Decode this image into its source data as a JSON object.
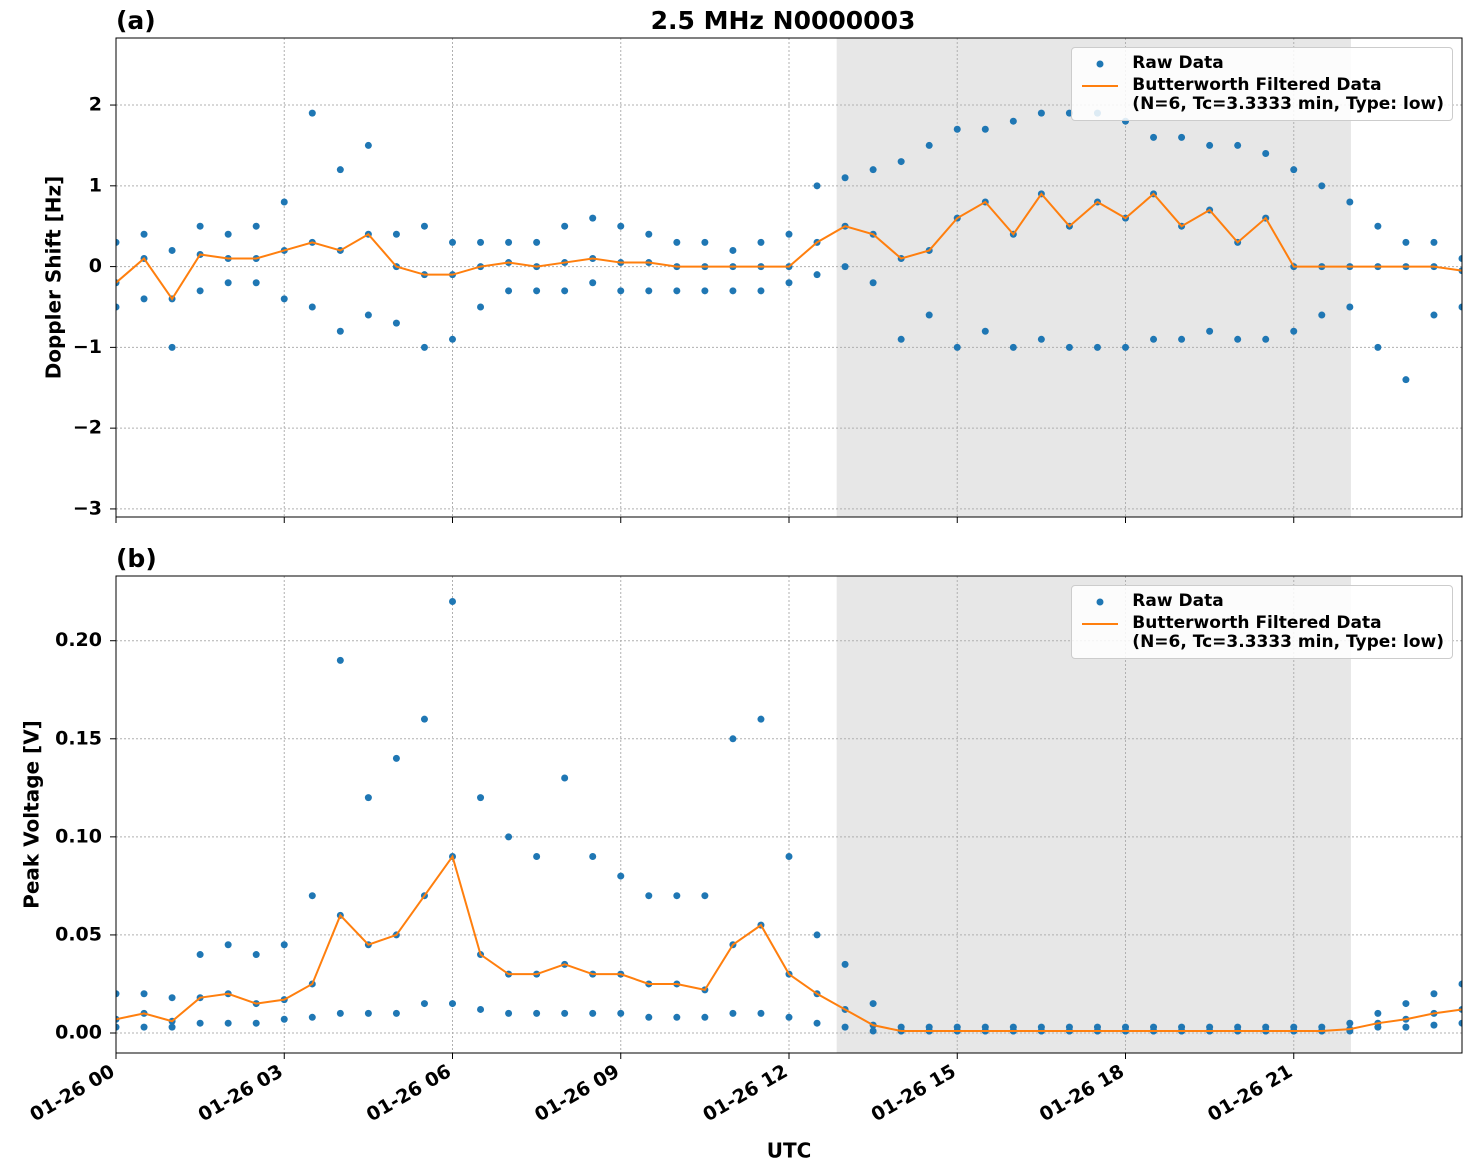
{
  "chart_data": [
    {
      "type": "scatter-line",
      "title": "2.5 MHz N0000003",
      "panel_label": "(a)",
      "ylabel": "Doppler Shift [Hz]",
      "x": [
        0,
        0.5,
        1,
        1.5,
        2,
        2.5,
        3,
        3.5,
        4,
        4.5,
        5,
        5.5,
        6,
        6.5,
        7,
        7.5,
        8,
        8.5,
        9,
        9.5,
        10,
        10.5,
        11,
        11.5,
        12,
        12.5,
        13,
        13.5,
        14,
        14.5,
        15,
        15.5,
        16,
        16.5,
        17,
        17.5,
        18,
        18.5,
        19,
        19.5,
        20,
        20.5,
        21,
        21.5,
        22,
        22.5,
        23,
        23.5,
        24
      ],
      "series": [
        {
          "name": "Raw Data",
          "color": "#1f77b4",
          "values": [
            [
              -0.5,
              -0.2,
              0.3
            ],
            [
              -0.4,
              0.1,
              0.4
            ],
            [
              -1.0,
              -0.4,
              0.2
            ],
            [
              -0.3,
              0.15,
              0.5
            ],
            [
              -0.2,
              0.1,
              0.4
            ],
            [
              -0.2,
              0.1,
              0.5
            ],
            [
              -0.4,
              0.2,
              0.8
            ],
            [
              -0.5,
              0.3,
              1.9
            ],
            [
              -0.8,
              0.2,
              1.2
            ],
            [
              -0.6,
              0.4,
              1.5
            ],
            [
              -0.7,
              0,
              0.4
            ],
            [
              -1.0,
              -0.1,
              0.5
            ],
            [
              -0.9,
              -0.1,
              0.3
            ],
            [
              -0.5,
              0,
              0.3
            ],
            [
              -0.3,
              0.05,
              0.3
            ],
            [
              -0.3,
              0,
              0.3
            ],
            [
              -0.3,
              0.05,
              0.5
            ],
            [
              -0.2,
              0.1,
              0.6
            ],
            [
              -0.3,
              0.05,
              0.5
            ],
            [
              -0.3,
              0.05,
              0.4
            ],
            [
              -0.3,
              0,
              0.3
            ],
            [
              -0.3,
              0,
              0.3
            ],
            [
              -0.3,
              0,
              0.2
            ],
            [
              -0.3,
              0,
              0.3
            ],
            [
              -0.2,
              0,
              0.4
            ],
            [
              -0.1,
              0.3,
              1.0
            ],
            [
              0,
              0.5,
              1.1
            ],
            [
              -0.2,
              0.4,
              1.2
            ],
            [
              -0.9,
              0.1,
              1.3
            ],
            [
              -0.6,
              0.2,
              1.5
            ],
            [
              -1.0,
              0.6,
              1.7
            ],
            [
              -0.8,
              0.8,
              1.7
            ],
            [
              -1.0,
              0.4,
              1.8
            ],
            [
              -0.9,
              0.9,
              1.9
            ],
            [
              -1.0,
              0.5,
              1.9
            ],
            [
              -1.0,
              0.8,
              1.9
            ],
            [
              -1.0,
              0.6,
              1.8
            ],
            [
              -0.9,
              0.9,
              1.6
            ],
            [
              -0.9,
              0.5,
              1.6
            ],
            [
              -0.8,
              0.7,
              1.5
            ],
            [
              -0.9,
              0.3,
              1.5
            ],
            [
              -0.9,
              0.6,
              1.4
            ],
            [
              -0.8,
              0,
              1.2
            ],
            [
              -0.6,
              0,
              1.0
            ],
            [
              -0.5,
              0,
              0.8
            ],
            [
              -1.0,
              0,
              0.5
            ],
            [
              -1.4,
              0,
              0.3
            ],
            [
              -0.6,
              0,
              0.3
            ],
            [
              -0.5,
              -0.05,
              0.1
            ]
          ]
        },
        {
          "name": "Butterworth Filtered Data\n(N=6, Tc=3.3333 min, Type: low)",
          "color": "#ff7f0e",
          "values": [
            -0.2,
            0.1,
            -0.4,
            0.15,
            0.1,
            0.1,
            0.2,
            0.3,
            0.2,
            0.4,
            0,
            -0.1,
            -0.1,
            0,
            0.05,
            0,
            0.05,
            0.1,
            0.05,
            0.05,
            0,
            0,
            0,
            0,
            0,
            0.3,
            0.5,
            0.4,
            0.1,
            0.2,
            0.6,
            0.8,
            0.4,
            0.9,
            0.5,
            0.8,
            0.6,
            0.9,
            0.5,
            0.7,
            0.3,
            0.6,
            0,
            0,
            0,
            0,
            0,
            0,
            -0.05
          ]
        }
      ],
      "xlim": [
        0,
        24
      ],
      "xticks": [
        0,
        3,
        6,
        9,
        12,
        15,
        18,
        21
      ],
      "ylim": [
        -3.1,
        2.83
      ],
      "yticks": [
        {
          "value": -3,
          "label": "−3"
        },
        {
          "value": -2,
          "label": "−2"
        },
        {
          "value": -1,
          "label": "−1"
        },
        0,
        1,
        2
      ],
      "shade": [
        12.85,
        22.02
      ],
      "grid": true,
      "legend": "upper right"
    },
    {
      "type": "scatter-line",
      "panel_label": "(b)",
      "ylabel": "Peak Voltage [V]",
      "xlabel": "UTC",
      "x": [
        0,
        0.5,
        1,
        1.5,
        2,
        2.5,
        3,
        3.5,
        4,
        4.5,
        5,
        5.5,
        6,
        6.5,
        7,
        7.5,
        8,
        8.5,
        9,
        9.5,
        10,
        10.5,
        11,
        11.5,
        12,
        12.5,
        13,
        13.5,
        14,
        14.5,
        15,
        15.5,
        16,
        16.5,
        17,
        17.5,
        18,
        18.5,
        19,
        19.5,
        20,
        20.5,
        21,
        21.5,
        22,
        22.5,
        23,
        23.5,
        24
      ],
      "series": [
        {
          "name": "Raw Data",
          "color": "#1f77b4",
          "values": [
            [
              0.003,
              0.007,
              0.02
            ],
            [
              0.003,
              0.01,
              0.02
            ],
            [
              0.003,
              0.006,
              0.018
            ],
            [
              0.005,
              0.018,
              0.04
            ],
            [
              0.005,
              0.02,
              0.045
            ],
            [
              0.005,
              0.015,
              0.04
            ],
            [
              0.007,
              0.017,
              0.045
            ],
            [
              0.008,
              0.025,
              0.07
            ],
            [
              0.01,
              0.06,
              0.19
            ],
            [
              0.01,
              0.045,
              0.12
            ],
            [
              0.01,
              0.05,
              0.14
            ],
            [
              0.015,
              0.07,
              0.16
            ],
            [
              0.015,
              0.09,
              0.22
            ],
            [
              0.012,
              0.04,
              0.12
            ],
            [
              0.01,
              0.03,
              0.1
            ],
            [
              0.01,
              0.03,
              0.09
            ],
            [
              0.01,
              0.035,
              0.13
            ],
            [
              0.01,
              0.03,
              0.09
            ],
            [
              0.01,
              0.03,
              0.08
            ],
            [
              0.008,
              0.025,
              0.07
            ],
            [
              0.008,
              0.025,
              0.07
            ],
            [
              0.008,
              0.022,
              0.07
            ],
            [
              0.01,
              0.045,
              0.15
            ],
            [
              0.01,
              0.055,
              0.16
            ],
            [
              0.008,
              0.03,
              0.09
            ],
            [
              0.005,
              0.02,
              0.05
            ],
            [
              0.003,
              0.012,
              0.035
            ],
            [
              0.001,
              0.004,
              0.015
            ],
            [
              0.001,
              0.001,
              0.003
            ],
            [
              0.001,
              0.001,
              0.003
            ],
            [
              0.001,
              0.001,
              0.003
            ],
            [
              0.001,
              0.001,
              0.003
            ],
            [
              0.001,
              0.001,
              0.003
            ],
            [
              0.001,
              0.001,
              0.003
            ],
            [
              0.001,
              0.001,
              0.003
            ],
            [
              0.001,
              0.001,
              0.003
            ],
            [
              0.001,
              0.001,
              0.003
            ],
            [
              0.001,
              0.001,
              0.003
            ],
            [
              0.001,
              0.001,
              0.003
            ],
            [
              0.001,
              0.001,
              0.003
            ],
            [
              0.001,
              0.001,
              0.003
            ],
            [
              0.001,
              0.001,
              0.003
            ],
            [
              0.001,
              0.001,
              0.003
            ],
            [
              0.001,
              0.001,
              0.003
            ],
            [
              0.001,
              0.002,
              0.005
            ],
            [
              0.003,
              0.005,
              0.01
            ],
            [
              0.003,
              0.007,
              0.015
            ],
            [
              0.004,
              0.01,
              0.02
            ],
            [
              0.005,
              0.012,
              0.025
            ]
          ]
        },
        {
          "name": "Butterworth Filtered Data\n(N=6, Tc=3.3333 min, Type: low)",
          "color": "#ff7f0e",
          "values": [
            0.007,
            0.01,
            0.006,
            0.018,
            0.02,
            0.015,
            0.017,
            0.025,
            0.06,
            0.045,
            0.05,
            0.07,
            0.09,
            0.04,
            0.03,
            0.03,
            0.035,
            0.03,
            0.03,
            0.025,
            0.025,
            0.022,
            0.045,
            0.055,
            0.03,
            0.02,
            0.012,
            0.004,
            0.001,
            0.001,
            0.001,
            0.001,
            0.001,
            0.001,
            0.001,
            0.001,
            0.001,
            0.001,
            0.001,
            0.001,
            0.001,
            0.001,
            0.001,
            0.001,
            0.002,
            0.005,
            0.007,
            0.01,
            0.012
          ]
        }
      ],
      "xlim": [
        0,
        24
      ],
      "xticks": [
        {
          "value": 0,
          "label": "01-26 00"
        },
        {
          "value": 3,
          "label": "01-26 03"
        },
        {
          "value": 6,
          "label": "01-26 06"
        },
        {
          "value": 9,
          "label": "01-26 09"
        },
        {
          "value": 12,
          "label": "01-26 12"
        },
        {
          "value": 15,
          "label": "01-26 15"
        },
        {
          "value": 18,
          "label": "01-26 18"
        },
        {
          "value": 21,
          "label": "01-26 21"
        }
      ],
      "ylim": [
        -0.0102,
        0.233
      ],
      "yticks": [
        {
          "value": 0,
          "label": "0.00"
        },
        {
          "value": 0.05,
          "label": "0.05"
        },
        {
          "value": 0.1,
          "label": "0.10"
        },
        {
          "value": 0.15,
          "label": "0.15"
        },
        {
          "value": 0.2,
          "label": "0.20"
        }
      ],
      "shade": [
        12.85,
        22.02
      ],
      "grid": true,
      "legend": "upper right"
    }
  ]
}
